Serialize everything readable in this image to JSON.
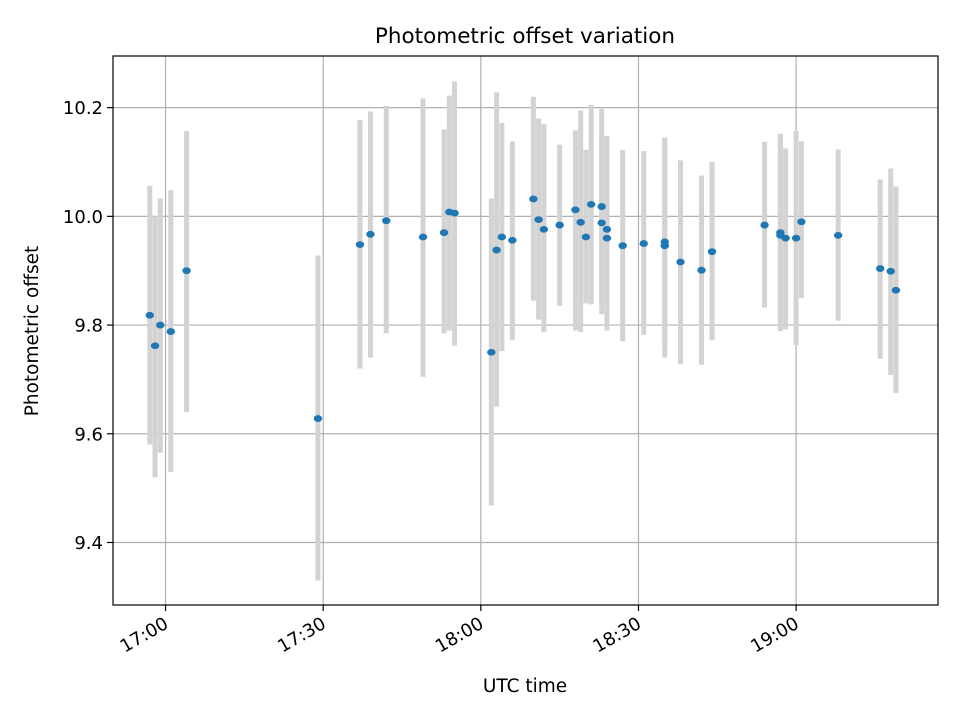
{
  "chart_data": {
    "type": "scatter",
    "title": "Photometric offset variation",
    "xlabel": "UTC time",
    "ylabel": "Photometric offset",
    "x_ticks": [
      "17:00",
      "17:30",
      "18:00",
      "18:30",
      "19:00"
    ],
    "y_ticks": [
      "9.4",
      "9.6",
      "9.8",
      "10.0",
      "10.2"
    ],
    "xlim": [
      "16:50",
      "19:27"
    ],
    "ylim": [
      9.285,
      10.295
    ],
    "grid": true,
    "x": [
      "16:57",
      "16:58",
      "16:59",
      "17:01",
      "17:04",
      "17:29",
      "17:37",
      "17:39",
      "17:42",
      "17:49",
      "17:53",
      "17:54",
      "17:55",
      "18:02",
      "18:03",
      "18:04",
      "18:06",
      "18:10",
      "18:11",
      "18:12",
      "18:15",
      "18:18",
      "18:19",
      "18:20",
      "18:21",
      "18:23",
      "18:23",
      "18:24",
      "18:24",
      "18:27",
      "18:31",
      "18:35",
      "18:35",
      "18:38",
      "18:42",
      "18:44",
      "18:54",
      "18:57",
      "18:57",
      "18:58",
      "19:00",
      "19:01",
      "19:08",
      "19:16",
      "19:18",
      "19:19"
    ],
    "series": [
      {
        "values": [
          9.818,
          9.762,
          9.8,
          9.788,
          9.9,
          9.628,
          9.948,
          9.967,
          9.992,
          9.962,
          9.97,
          10.008,
          10.006,
          9.75,
          9.938,
          9.962,
          9.956,
          10.032,
          9.994,
          9.976,
          9.984,
          10.012,
          9.989,
          9.962,
          10.022,
          10.018,
          9.988,
          9.976,
          9.96,
          9.946,
          9.95,
          9.946,
          9.953,
          9.916,
          9.901,
          9.935,
          9.984,
          9.97,
          9.965,
          9.96,
          9.96,
          9.99,
          9.965,
          9.904,
          9.899,
          9.864
        ],
        "err_low": [
          9.58,
          9.52,
          9.565,
          9.53,
          9.64,
          9.33,
          9.72,
          9.74,
          9.785,
          9.705,
          9.785,
          9.79,
          9.762,
          9.468,
          9.65,
          9.752,
          9.772,
          9.845,
          9.81,
          9.787,
          9.835,
          9.79,
          9.787,
          9.84,
          9.838,
          9.84,
          9.82,
          9.81,
          9.79,
          9.77,
          9.782,
          9.74,
          9.766,
          9.728,
          9.727,
          9.772,
          9.832,
          9.79,
          9.789,
          9.792,
          9.763,
          9.85,
          9.808,
          9.738,
          9.708,
          9.675
        ],
        "err_high": [
          10.056,
          10.0,
          10.033,
          10.048,
          10.157,
          9.928,
          10.177,
          10.193,
          10.203,
          10.217,
          10.16,
          10.222,
          10.248,
          10.033,
          10.228,
          10.172,
          10.138,
          10.22,
          10.18,
          10.17,
          10.132,
          10.158,
          10.195,
          10.122,
          10.205,
          10.198,
          10.158,
          10.148,
          10.122,
          10.122,
          10.12,
          10.145,
          10.144,
          10.103,
          10.075,
          10.1,
          10.137,
          10.152,
          10.149,
          10.125,
          10.157,
          10.138,
          10.123,
          10.068,
          10.088,
          10.055
        ]
      }
    ]
  }
}
